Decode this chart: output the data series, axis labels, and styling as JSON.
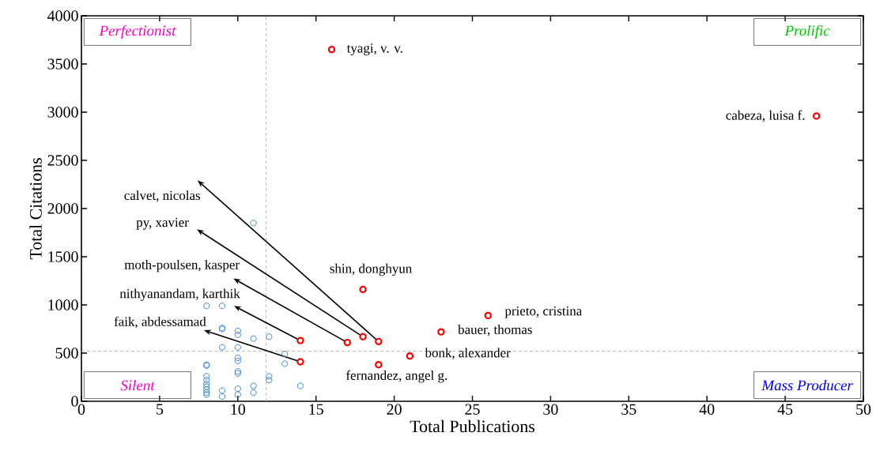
{
  "chart_data": {
    "type": "scatter",
    "xlabel": "Total Publications",
    "ylabel": "Total Citations",
    "xlim": [
      0,
      50
    ],
    "ylim": [
      0,
      4000
    ],
    "xticks": [
      0,
      5,
      10,
      15,
      20,
      25,
      30,
      35,
      40,
      45,
      50
    ],
    "yticks": [
      0,
      500,
      1000,
      1500,
      2000,
      2500,
      3000,
      3500,
      4000
    ],
    "marker": "circle",
    "series": [
      {
        "color": "#3b87d4",
        "x": [
          8,
          8,
          8,
          8,
          8,
          8,
          8,
          8,
          8,
          8,
          9,
          9,
          9,
          9,
          9,
          9,
          10,
          10,
          10,
          10,
          10,
          10,
          10,
          10,
          10,
          11,
          11,
          11,
          11,
          12,
          12,
          12,
          13,
          13,
          14
        ],
        "values": [
          990,
          380,
          370,
          260,
          220,
          180,
          150,
          120,
          90,
          70,
          990,
          760,
          750,
          560,
          110,
          50,
          730,
          690,
          560,
          450,
          420,
          310,
          290,
          130,
          70,
          1850,
          650,
          160,
          90,
          670,
          260,
          220,
          490,
          390,
          160
        ]
      },
      {
        "color": "#ff0000",
        "x": [
          14,
          14,
          16,
          17,
          18,
          18,
          19,
          19,
          21,
          23,
          26,
          47
        ],
        "values": [
          630,
          410,
          3650,
          610,
          670,
          1160,
          620,
          380,
          470,
          720,
          890,
          2960
        ]
      }
    ],
    "ref_lines": [
      {
        "axis": "x",
        "value": 11.8,
        "color": "#aaaaaa",
        "line_style": "dashed"
      },
      {
        "axis": "y",
        "value": 520,
        "color": "#aaaaaa",
        "line_style": "dashed"
      }
    ],
    "annotations": [
      "Perfectionist",
      "Prolific",
      "Silent",
      "Mass Producer",
      {
        "text": "calvet, nicolas",
        "x": 19,
        "y": 620
      },
      {
        "text": "py, xavier",
        "x": 18,
        "y": 670
      },
      {
        "text": "moth-poulsen, kasper",
        "x": 17,
        "y": 610
      },
      {
        "text": "nithyanandam, karthik",
        "x": 14,
        "y": 630
      },
      {
        "text": "faik, abdessamad",
        "x": 14,
        "y": 410
      },
      {
        "text": "tyagi, v. v.",
        "x": 16,
        "y": 3650
      },
      {
        "text": "cabeza, luisa f.",
        "x": 47,
        "y": 2960
      },
      {
        "text": "shin, donghyun",
        "x": 18,
        "y": 1160
      },
      {
        "text": "prieto, cristina",
        "x": 26,
        "y": 890
      },
      {
        "text": "bauer, thomas",
        "x": 23,
        "y": 720
      },
      {
        "text": "bonk, alexander",
        "x": 21,
        "y": 470
      },
      {
        "text": "fernandez, angel g.",
        "x": 19,
        "y": 380
      }
    ]
  }
}
